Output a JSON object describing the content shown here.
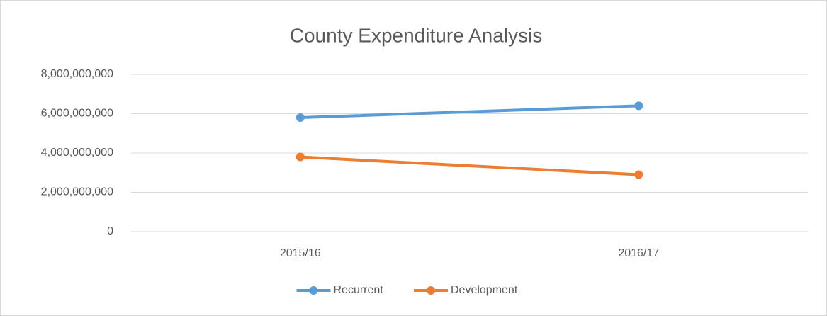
{
  "chart_data": {
    "type": "line",
    "title": "County Expenditure Analysis",
    "categories": [
      "2015/16",
      "2016/17"
    ],
    "series": [
      {
        "name": "Recurrent",
        "color": "#5b9bd5",
        "values": [
          5800000000,
          6400000000
        ]
      },
      {
        "name": "Development",
        "color": "#ed7d31",
        "values": [
          3800000000,
          2900000000
        ]
      }
    ],
    "ylim": [
      0,
      8000000000
    ],
    "yticks": [
      0,
      {
        "value": 2000000000,
        "label": "2,000,000,000"
      },
      {
        "value": 4000000000,
        "label": "4,000,000,000"
      },
      {
        "value": 6000000000,
        "label": "6,000,000,000"
      },
      {
        "value": 8000000000,
        "label": "8,000,000,000"
      }
    ],
    "grid": true,
    "legend": "bottom"
  }
}
